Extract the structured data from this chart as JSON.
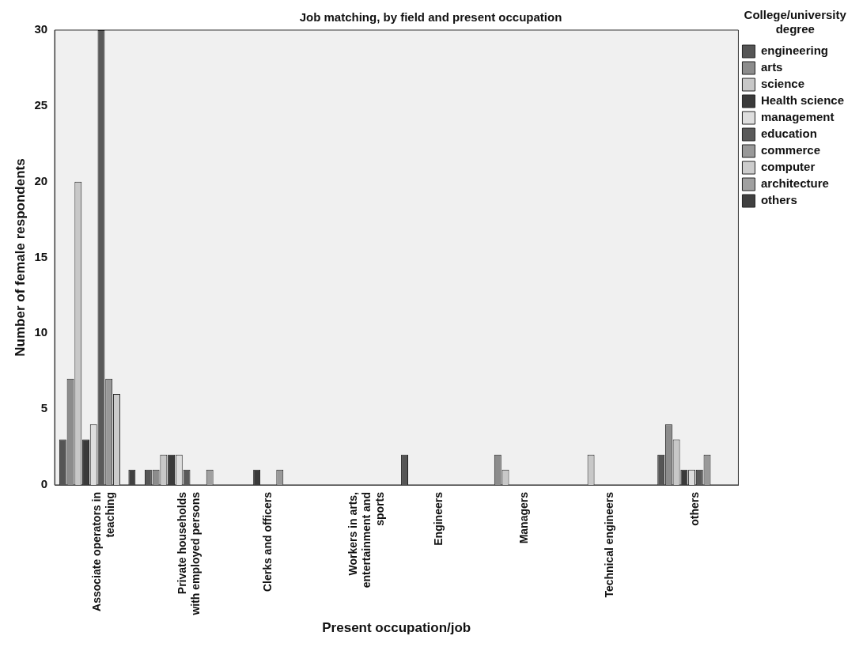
{
  "chart_data": {
    "type": "bar",
    "title": "Job matching, by field and present occupation",
    "xlabel": "Present occupation/job",
    "ylabel": "Number of female respondents",
    "legend_title": "College/university degree",
    "legend": "right",
    "grid": false,
    "categories": [
      "Associate operators in teaching",
      "Private households with employed persons",
      "Clerks and officers",
      "Workers in arts, entertainment and sports",
      "Engineers",
      "Managers",
      "Technical engineers",
      "others"
    ],
    "ylim": [
      0,
      30
    ],
    "yticks": [
      0,
      5,
      10,
      15,
      20,
      25,
      30
    ],
    "series": [
      {
        "name": "engineering",
        "color": "#555555",
        "values": [
          3,
          1,
          0,
          0,
          2,
          0,
          0,
          2
        ]
      },
      {
        "name": "arts",
        "color": "#8c8c8c",
        "values": [
          7,
          1,
          0,
          0,
          0,
          2,
          0,
          4
        ]
      },
      {
        "name": "science",
        "color": "#c8c8c8",
        "values": [
          20,
          2,
          0,
          0,
          0,
          1,
          2,
          3
        ]
      },
      {
        "name": "Health science",
        "color": "#3a3a3a",
        "values": [
          3,
          2,
          1,
          0,
          0,
          0,
          0,
          1
        ]
      },
      {
        "name": "management",
        "color": "#dedede",
        "values": [
          4,
          2,
          0,
          0,
          0,
          0,
          0,
          1
        ]
      },
      {
        "name": "education",
        "color": "#5a5a5a",
        "values": [
          30,
          1,
          0,
          0,
          0,
          0,
          0,
          1
        ]
      },
      {
        "name": "commerce",
        "color": "#999999",
        "values": [
          7,
          0,
          1,
          0,
          0,
          0,
          0,
          2
        ]
      },
      {
        "name": "computer",
        "color": "#cccccc",
        "values": [
          6,
          0,
          0,
          0,
          0,
          0,
          0,
          0
        ]
      },
      {
        "name": "architecture",
        "color": "#a0a0a0",
        "values": [
          0,
          1,
          0,
          0,
          0,
          0,
          0,
          0
        ]
      },
      {
        "name": "others",
        "color": "#404040",
        "values": [
          1,
          0,
          0,
          0,
          0,
          0,
          0,
          0
        ]
      }
    ]
  }
}
